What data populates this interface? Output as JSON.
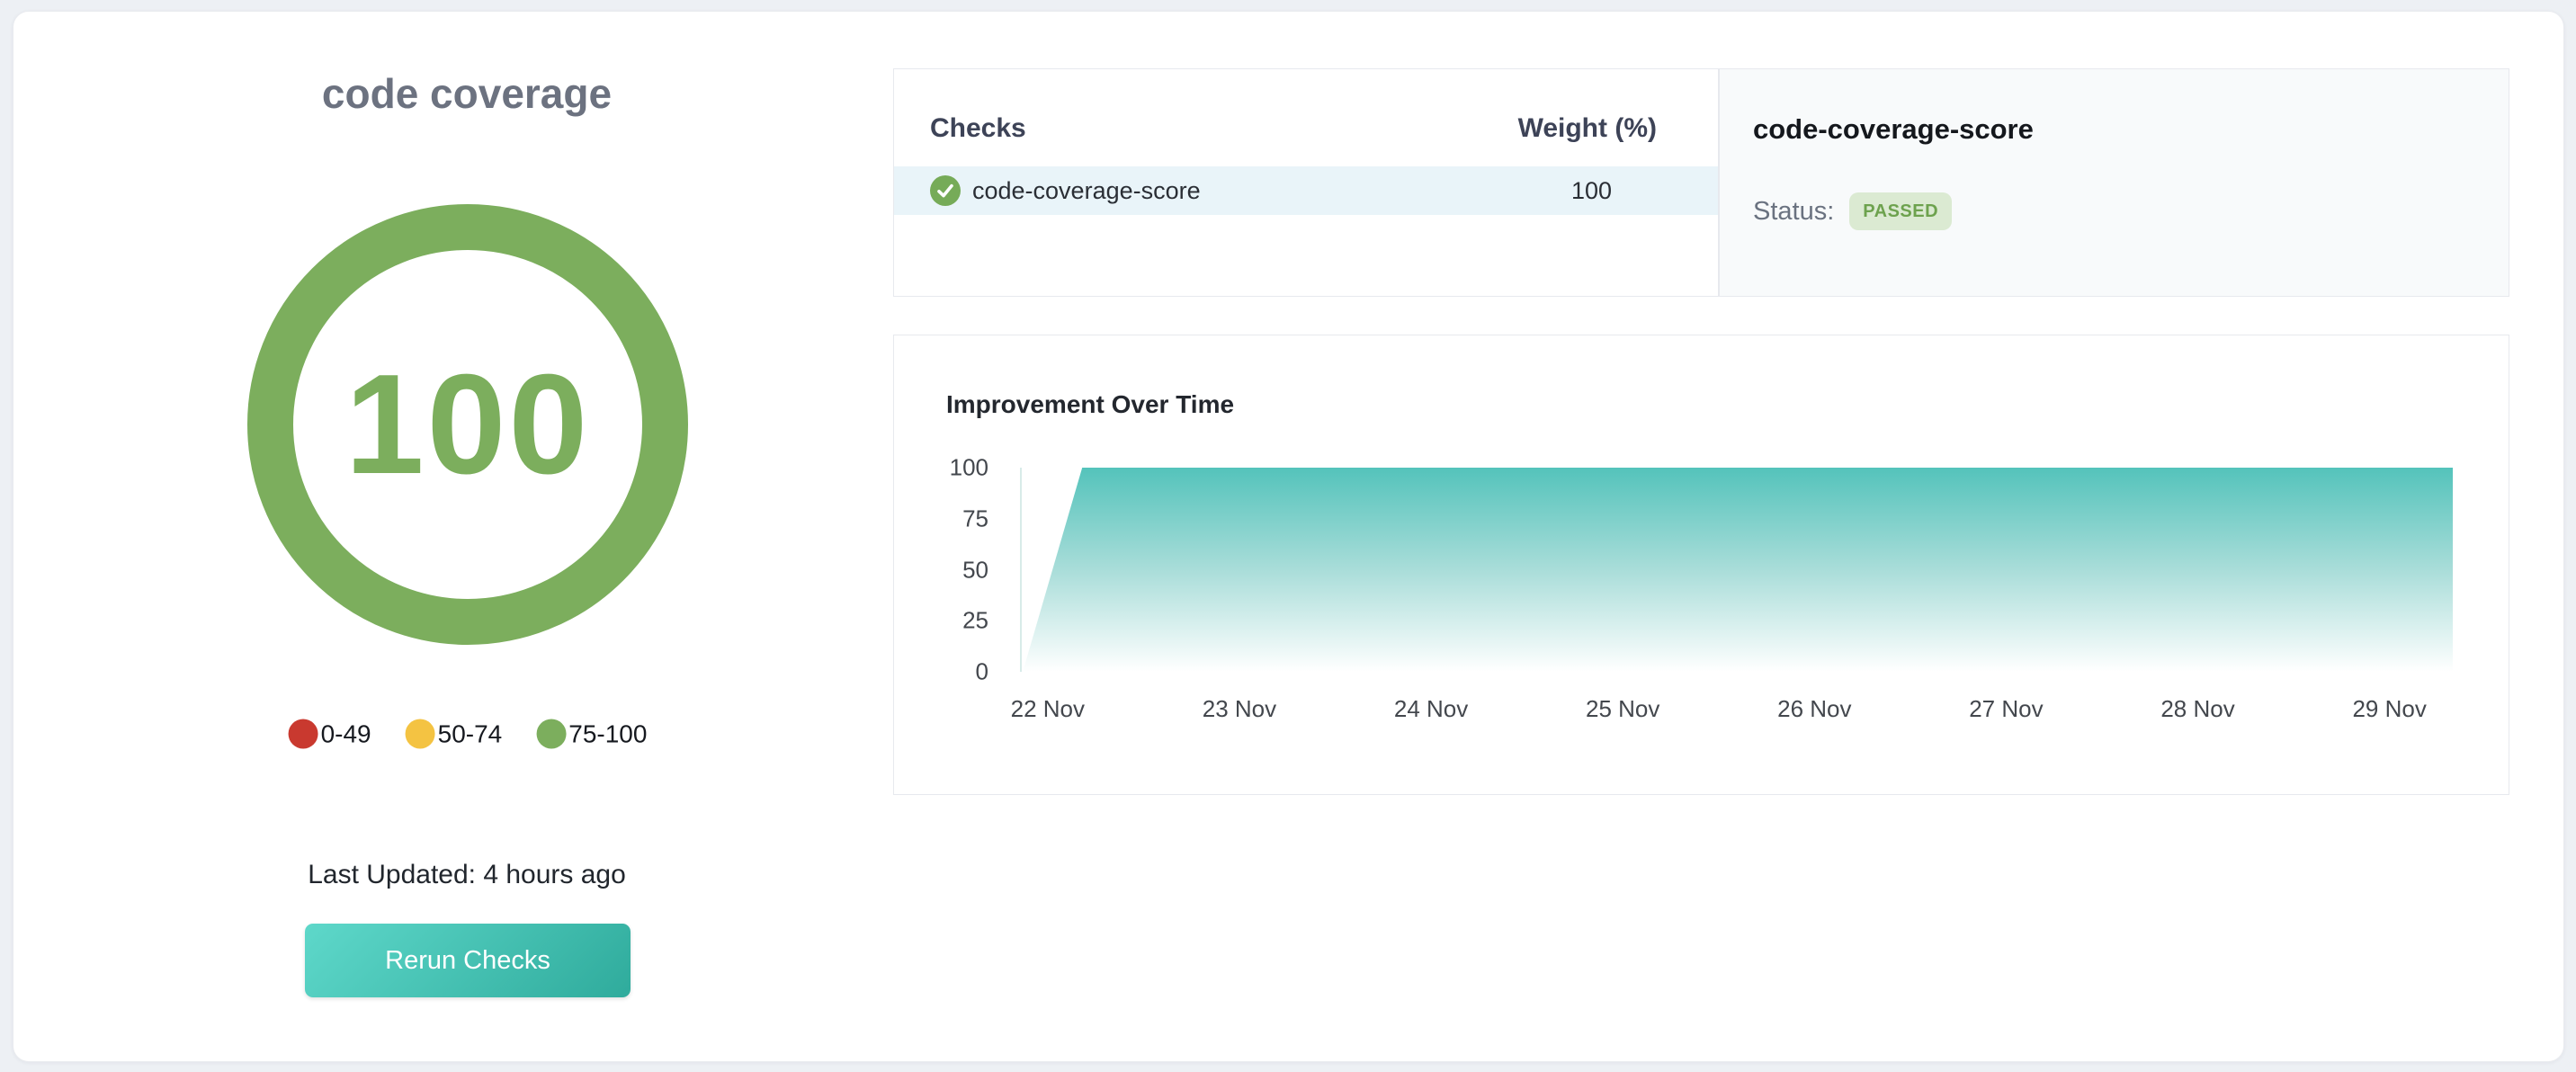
{
  "header": {
    "title": "code coverage"
  },
  "gauge": {
    "score": "100",
    "max": 100,
    "ring_color": "#7cae5d"
  },
  "legend": [
    {
      "label": "0-49",
      "color": "#c9392f"
    },
    {
      "label": "50-74",
      "color": "#f4c342"
    },
    {
      "label": "75-100",
      "color": "#7cae5d"
    }
  ],
  "footer": {
    "last_updated": "Last Updated: 4 hours ago",
    "rerun_button": "Rerun Checks"
  },
  "checks_panel": {
    "col_checks": "Checks",
    "col_weight": "Weight (%)",
    "rows": [
      {
        "name": "code-coverage-score",
        "weight": "100",
        "status": "passed",
        "icon": "check-circle-icon",
        "icon_color": "#76ab58",
        "row_bg": "#e9f4f9"
      }
    ]
  },
  "detail_panel": {
    "title": "code-coverage-score",
    "status_label": "Status:",
    "badge": {
      "text": "PASSED",
      "bg": "#dbead2",
      "color": "#6da24e"
    }
  },
  "chart_data": {
    "type": "area",
    "title": "Improvement Over Time",
    "xlabel": "",
    "ylabel": "",
    "x_unit": "date (November)",
    "x_domain_days": [
      21.86,
      29.33
    ],
    "ylim": [
      0,
      100
    ],
    "y_ticks": [
      100,
      75,
      50,
      25,
      0
    ],
    "x_ticks": [
      {
        "day": 22,
        "label": "22 Nov"
      },
      {
        "day": 23,
        "label": "23 Nov"
      },
      {
        "day": 24,
        "label": "24 Nov"
      },
      {
        "day": 25,
        "label": "25 Nov"
      },
      {
        "day": 26,
        "label": "26 Nov"
      },
      {
        "day": 27,
        "label": "27 Nov"
      },
      {
        "day": 28,
        "label": "28 Nov"
      },
      {
        "day": 29,
        "label": "29 Nov"
      }
    ],
    "grid": false,
    "legend_position": "none",
    "series": [
      {
        "name": "code-coverage-score",
        "points": [
          [
            21.87,
            0
          ],
          [
            22.18,
            100
          ],
          [
            29.33,
            100
          ]
        ],
        "summary": "Score rose from 0 to 100 early on 22 Nov and stayed at 100 through 29 Nov",
        "fill_top_color": "#54c3bb",
        "fill_mid_color": "#a9ddd9",
        "fill_bottom_color": "#ffffff"
      }
    ]
  },
  "colors": {
    "page_bg": "#edf0f4",
    "card_bg": "#ffffff",
    "panel_border": "#e7e9ee",
    "detail_panel_bg": "#f8fafb",
    "row_bg": "#e9f4f9",
    "axis_line": "#d8ebe9",
    "button_gradient": [
      "#5ed8ca",
      "#2fab9c"
    ],
    "ring_green": "#7cae5d"
  }
}
